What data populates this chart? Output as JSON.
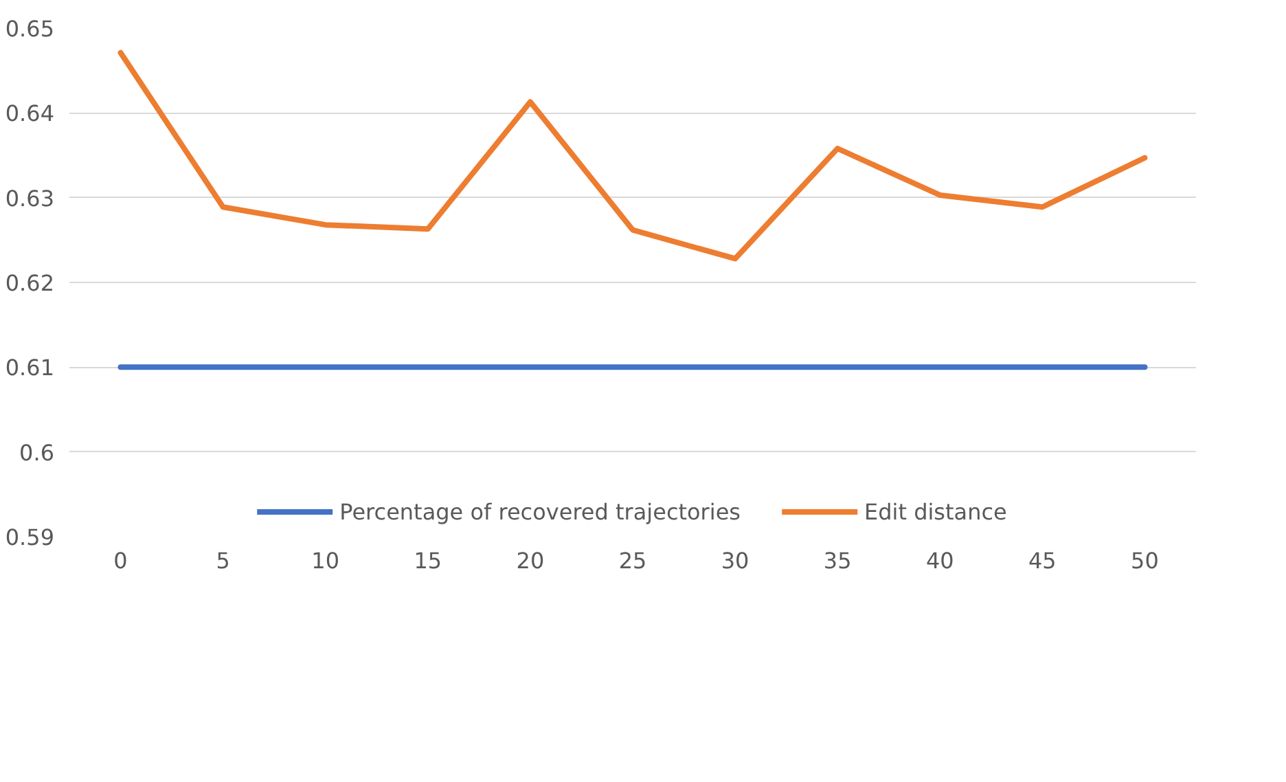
{
  "chart_data": {
    "type": "line",
    "categories": [
      "0",
      "5",
      "10",
      "15",
      "20",
      "25",
      "30",
      "35",
      "40",
      "45",
      "50"
    ],
    "series": [
      {
        "name": "Percentage of recovered trajectories",
        "color": "#4472c4",
        "values": [
          0.61,
          0.61,
          0.61,
          0.61,
          0.61,
          0.61,
          0.61,
          0.61,
          0.61,
          0.61,
          0.61
        ]
      },
      {
        "name": "Edit distance",
        "color": "#ed7d31",
        "values": [
          0.6471,
          0.6289,
          0.6268,
          0.6263,
          0.6413,
          0.6262,
          0.6228,
          0.6358,
          0.6303,
          0.6289,
          0.6347
        ]
      }
    ],
    "ylim": [
      0.59,
      0.65
    ],
    "yticks": [
      0.59,
      {
        "value": 0.6,
        "label": "0.6"
      },
      0.61,
      0.62,
      0.63,
      0.64,
      0.65
    ],
    "grid": "y",
    "legend": "bottom",
    "marker": "none",
    "line_style": "solid"
  }
}
